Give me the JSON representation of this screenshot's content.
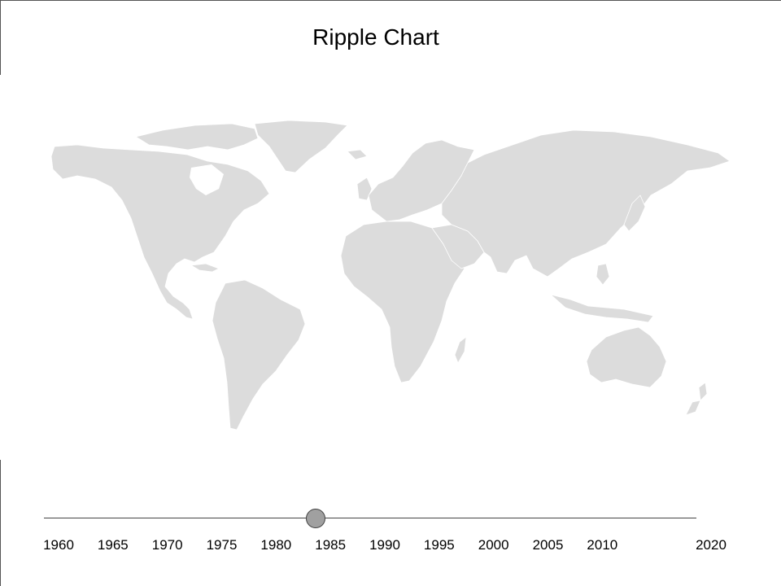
{
  "header": {
    "title": "Ripple Chart"
  },
  "map": {
    "land_color": "#dcdcdc",
    "border_color": "#ffffff"
  },
  "timeline": {
    "min_year": 1960,
    "max_year": 2020,
    "current_year": 1985,
    "track_color": "#444444",
    "handle_color": "#a0a0a0",
    "ticks": [
      "1960",
      "1965",
      "1970",
      "1975",
      "1980",
      "1985",
      "1990",
      "1995",
      "2000",
      "2005",
      "2010",
      "2020"
    ]
  }
}
